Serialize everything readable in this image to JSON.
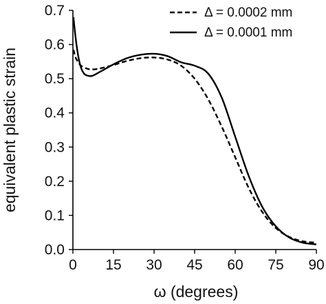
{
  "chart_data": {
    "type": "line",
    "xlabel": "ω (degrees)",
    "ylabel": "equivalent plastic strain",
    "xlim": [
      0,
      90
    ],
    "ylim": [
      0,
      0.7
    ],
    "x_ticks": [
      "0",
      "15",
      "30",
      "45",
      "60",
      "75",
      "90"
    ],
    "y_ticks": [
      "0.0",
      "0.1",
      "0.2",
      "0.3",
      "0.4",
      "0.5",
      "0.6",
      "0.7"
    ],
    "grid": false,
    "legend_position": "top-right",
    "series": [
      {
        "name": "Δ = 0.0002 mm",
        "style": "dashed",
        "color": "#000000",
        "x": [
          0.2,
          1,
          2,
          3,
          5,
          7,
          10,
          15,
          20,
          25,
          30,
          35,
          40,
          45,
          50,
          55,
          60,
          65,
          70,
          75,
          80,
          85,
          90
        ],
        "y": [
          0.585,
          0.562,
          0.548,
          0.538,
          0.53,
          0.527,
          0.53,
          0.54,
          0.552,
          0.56,
          0.562,
          0.556,
          0.538,
          0.5,
          0.44,
          0.36,
          0.27,
          0.18,
          0.11,
          0.063,
          0.037,
          0.024,
          0.02
        ]
      },
      {
        "name": "Δ = 0.0001 mm",
        "style": "solid",
        "color": "#000000",
        "x": [
          0.2,
          1,
          2,
          3,
          4,
          5,
          7,
          10,
          15,
          20,
          25,
          30,
          35,
          40,
          45,
          50,
          55,
          60,
          65,
          70,
          75,
          80,
          85,
          90
        ],
        "y": [
          0.68,
          0.62,
          0.565,
          0.532,
          0.516,
          0.51,
          0.508,
          0.52,
          0.542,
          0.56,
          0.57,
          0.573,
          0.566,
          0.548,
          0.538,
          0.515,
          0.445,
          0.33,
          0.215,
          0.125,
          0.068,
          0.035,
          0.02,
          0.015
        ]
      }
    ]
  }
}
